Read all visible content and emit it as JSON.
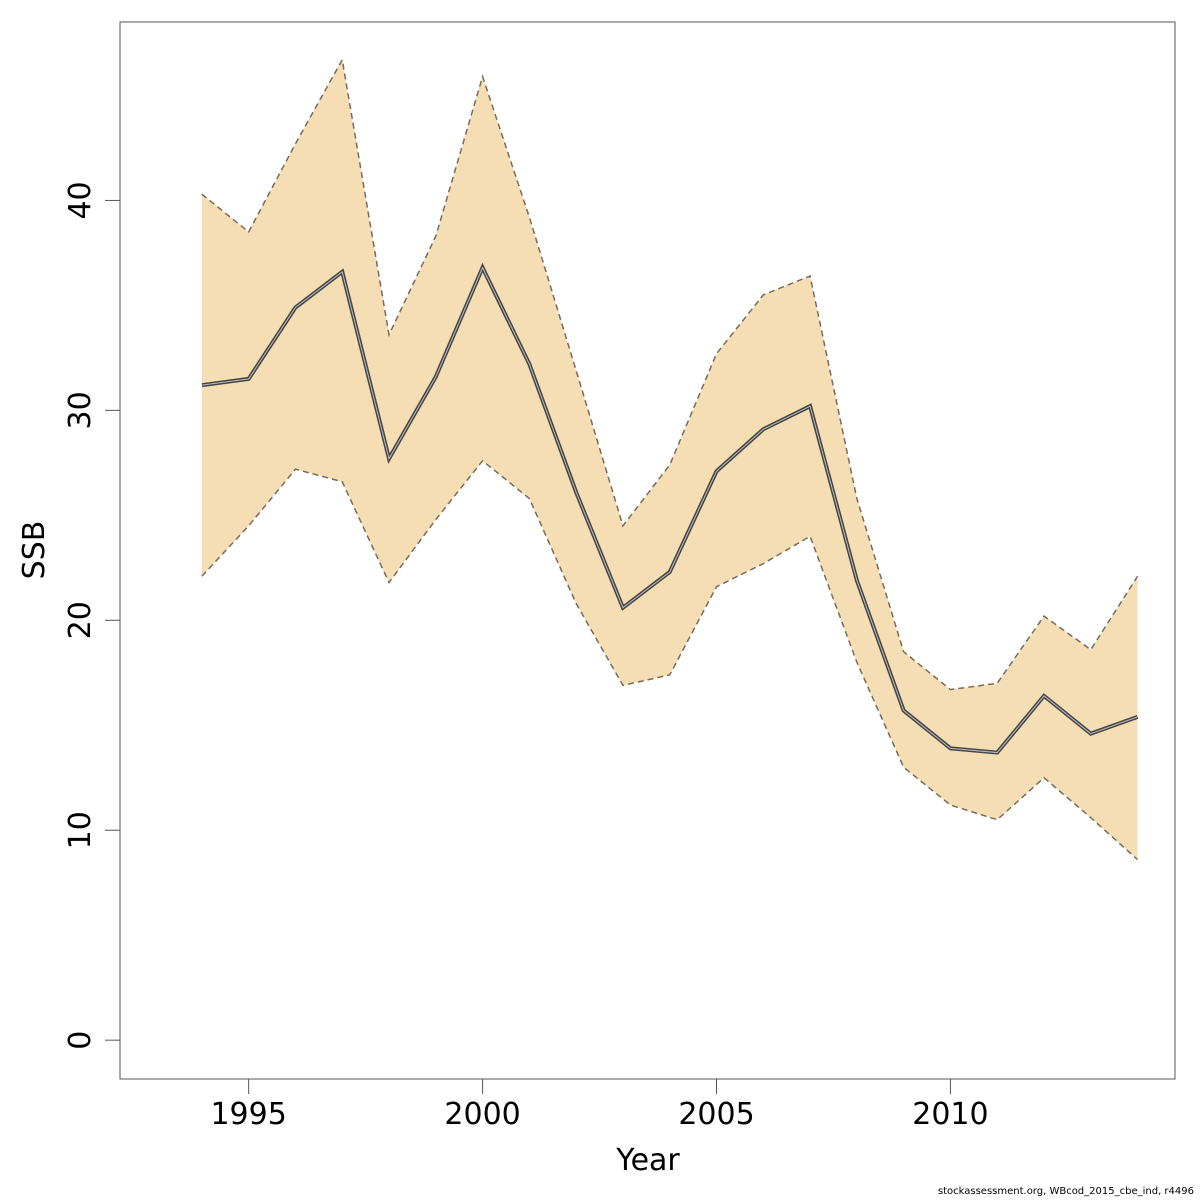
{
  "chart_data": {
    "type": "line",
    "title": "",
    "xlabel": "Year",
    "ylabel": "SSB",
    "xlim": [
      1992.25,
      2014.8
    ],
    "ylim": [
      -1.85,
      48.5
    ],
    "x_ticks": [
      1995,
      2000,
      2005,
      2010
    ],
    "y_ticks": [
      0,
      10,
      20,
      30,
      40
    ],
    "grid": false,
    "legend": "none",
    "x": [
      1994,
      1995,
      1996,
      1997,
      1998,
      1999,
      2000,
      2001,
      2002,
      2003,
      2004,
      2005,
      2006,
      2007,
      2008,
      2009,
      2010,
      2011,
      2012,
      2013,
      2014
    ],
    "series": [
      {
        "values": [
          31.2,
          31.5,
          34.9,
          36.6,
          27.7,
          31.6,
          36.8,
          32.2,
          26.1,
          20.6,
          22.3,
          27.1,
          29.1,
          30.2,
          21.9,
          15.7,
          13.9,
          13.7,
          16.4,
          14.6,
          15.4
        ],
        "color": "#555555"
      },
      {
        "values": [
          40.3,
          38.5,
          42.7,
          46.7,
          33.6,
          38.3,
          45.9,
          39.2,
          31.9,
          24.5,
          27.4,
          32.7,
          35.5,
          36.4,
          25.8,
          18.5,
          16.7,
          17.0,
          20.2,
          18.6,
          22.1
        ],
        "color": "#7a6a5a"
      },
      {
        "values": [
          22.1,
          24.5,
          27.2,
          26.6,
          21.8,
          24.8,
          27.6,
          25.8,
          20.8,
          16.9,
          17.4,
          21.6,
          22.7,
          24.0,
          18.0,
          13.0,
          11.2,
          10.5,
          12.5,
          10.6,
          8.6
        ],
        "color": "#7a6a5a"
      }
    ],
    "band_color": "#f5deb3"
  },
  "footer": "stockassessment.org, WBcod_2015_cbe_ind, r4496"
}
